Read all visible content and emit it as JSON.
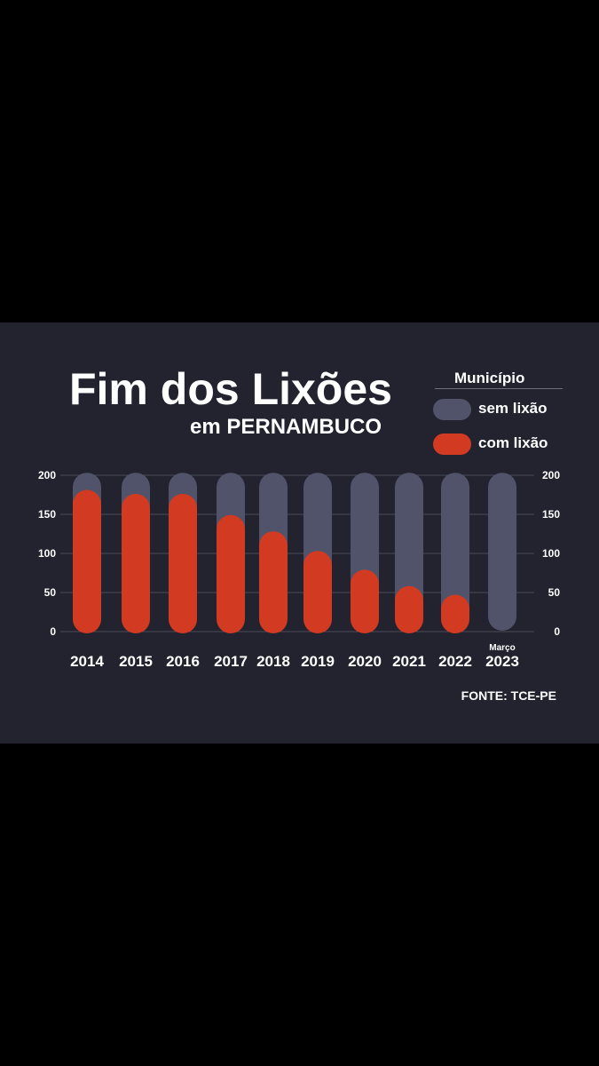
{
  "title": "Fim dos Lixões",
  "subtitle": "em PERNAMBUCO",
  "legend": {
    "title": "Município",
    "items": [
      {
        "label": "sem lixão",
        "color": "#51536b"
      },
      {
        "label": "com lixão",
        "color": "#d23a22"
      }
    ]
  },
  "source": "FONTE: TCE-PE",
  "chart_data": {
    "type": "bar",
    "categories": [
      "2014",
      "2015",
      "2016",
      "2017",
      "2018",
      "2019",
      "2020",
      "2021",
      "2022",
      "2023"
    ],
    "category_notes": [
      "",
      "",
      "",
      "",
      "",
      "",
      "",
      "",
      "",
      "Março"
    ],
    "series": [
      {
        "name": "sem lixão",
        "values": [
          185,
          185,
          185,
          185,
          185,
          185,
          185,
          185,
          185,
          185
        ],
        "color": "#51536b"
      },
      {
        "name": "com lixão",
        "values": [
          163,
          158,
          158,
          131,
          110,
          85,
          61,
          40,
          29,
          0
        ],
        "color": "#d23a22"
      }
    ],
    "y_ticks_left": [
      "0",
      "50",
      "100",
      "150",
      "200"
    ],
    "y_ticks_right": [
      "0",
      "50",
      "100",
      "150",
      "200"
    ],
    "ylim": [
      0,
      200
    ],
    "grid": true,
    "legend_position": "top-right"
  }
}
